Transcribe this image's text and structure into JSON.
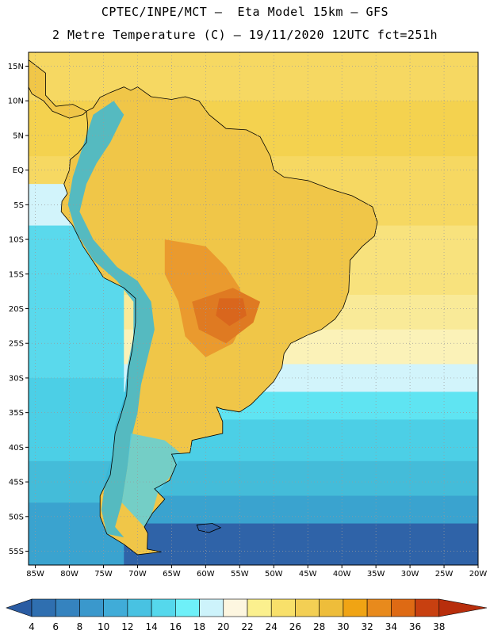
{
  "header": {
    "line1": "CPTEC/INPE/MCT –  Eta Model 15km – GFS",
    "line2": "2 Metre Temperature (C) – 19/11/2020 12UTC fct=251h"
  },
  "map": {
    "lon_range": [
      -86,
      -20
    ],
    "lat_range": [
      -57,
      17
    ],
    "lat_ticks": [
      {
        "value": 15,
        "label": "15N"
      },
      {
        "value": 10,
        "label": "10N"
      },
      {
        "value": 5,
        "label": "5N"
      },
      {
        "value": 0,
        "label": "EQ"
      },
      {
        "value": -5,
        "label": "5S"
      },
      {
        "value": -10,
        "label": "10S"
      },
      {
        "value": -15,
        "label": "15S"
      },
      {
        "value": -20,
        "label": "20S"
      },
      {
        "value": -25,
        "label": "25S"
      },
      {
        "value": -30,
        "label": "30S"
      },
      {
        "value": -35,
        "label": "35S"
      },
      {
        "value": -40,
        "label": "40S"
      },
      {
        "value": -45,
        "label": "45S"
      },
      {
        "value": -50,
        "label": "50S"
      },
      {
        "value": -55,
        "label": "55S"
      }
    ],
    "lon_ticks": [
      {
        "value": -85,
        "label": "85W"
      },
      {
        "value": -80,
        "label": "80W"
      },
      {
        "value": -75,
        "label": "75W"
      },
      {
        "value": -70,
        "label": "70W"
      },
      {
        "value": -65,
        "label": "65W"
      },
      {
        "value": -60,
        "label": "60W"
      },
      {
        "value": -55,
        "label": "55W"
      },
      {
        "value": -50,
        "label": "50W"
      },
      {
        "value": -45,
        "label": "45W"
      },
      {
        "value": -40,
        "label": "40W"
      },
      {
        "value": -35,
        "label": "35W"
      },
      {
        "value": -30,
        "label": "30W"
      },
      {
        "value": -25,
        "label": "25W"
      },
      {
        "value": -20,
        "label": "20W"
      }
    ],
    "ocean_bands": [
      {
        "lat_top": 17,
        "lat_bottom": 10,
        "color": "#f6d862"
      },
      {
        "lat_top": 10,
        "lat_bottom": 2,
        "color": "#f4d24f"
      },
      {
        "lat_top": 2,
        "lat_bottom": -8,
        "color": "#f6d862"
      },
      {
        "lat_top": -8,
        "lat_bottom": -18,
        "color": "#f8e27d"
      },
      {
        "lat_top": -18,
        "lat_bottom": -23,
        "color": "#f9ea98"
      },
      {
        "lat_top": -23,
        "lat_bottom": -28,
        "color": "#fbf2b8"
      },
      {
        "lat_top": -28,
        "lat_bottom": -32,
        "color": "#d2f4fb"
      },
      {
        "lat_top": -32,
        "lat_bottom": -36,
        "color": "#5fe4f2"
      },
      {
        "lat_top": -36,
        "lat_bottom": -42,
        "color": "#4ccfe6"
      },
      {
        "lat_top": -42,
        "lat_bottom": -47,
        "color": "#44bcd9"
      },
      {
        "lat_top": -47,
        "lat_bottom": -51,
        "color": "#3aa3cf"
      },
      {
        "lat_top": -51,
        "lat_bottom": -57,
        "color": "#2f63a8"
      }
    ],
    "pacific_bands": [
      {
        "lat_top": -2,
        "lat_bottom": -8,
        "color": "#d2f4fb"
      },
      {
        "lat_top": -8,
        "lat_bottom": -30,
        "color": "#5ad9ec"
      },
      {
        "lat_top": -30,
        "lat_bottom": -42,
        "color": "#4ccfe6"
      },
      {
        "lat_top": -42,
        "lat_bottom": -48,
        "color": "#44bcd9"
      },
      {
        "lat_top": -48,
        "lat_bottom": -57,
        "color": "#3aa3cf"
      }
    ],
    "land_color": "#f0c648",
    "andes_color": "#3ab7d6",
    "hotspot_colors": [
      "#ea9a2e",
      "#df7a22",
      "#d9661d"
    ]
  },
  "colorbar": {
    "labels": [
      "4",
      "6",
      "8",
      "10",
      "12",
      "14",
      "16",
      "18",
      "20",
      "22",
      "24",
      "26",
      "28",
      "30",
      "32",
      "34",
      "36",
      "38"
    ],
    "colors": [
      "#2a5ca3",
      "#2f6fb0",
      "#3583bf",
      "#3a98cc",
      "#40acd8",
      "#48c2e2",
      "#55d8ec",
      "#6ef0f8",
      "#cdf3fb",
      "#fdf6e0",
      "#fbf08e",
      "#f8e06a",
      "#f3cf54",
      "#eebd3a",
      "#f0a414",
      "#e88a1c",
      "#de6a14",
      "#c84010",
      "#b82e0c"
    ]
  }
}
